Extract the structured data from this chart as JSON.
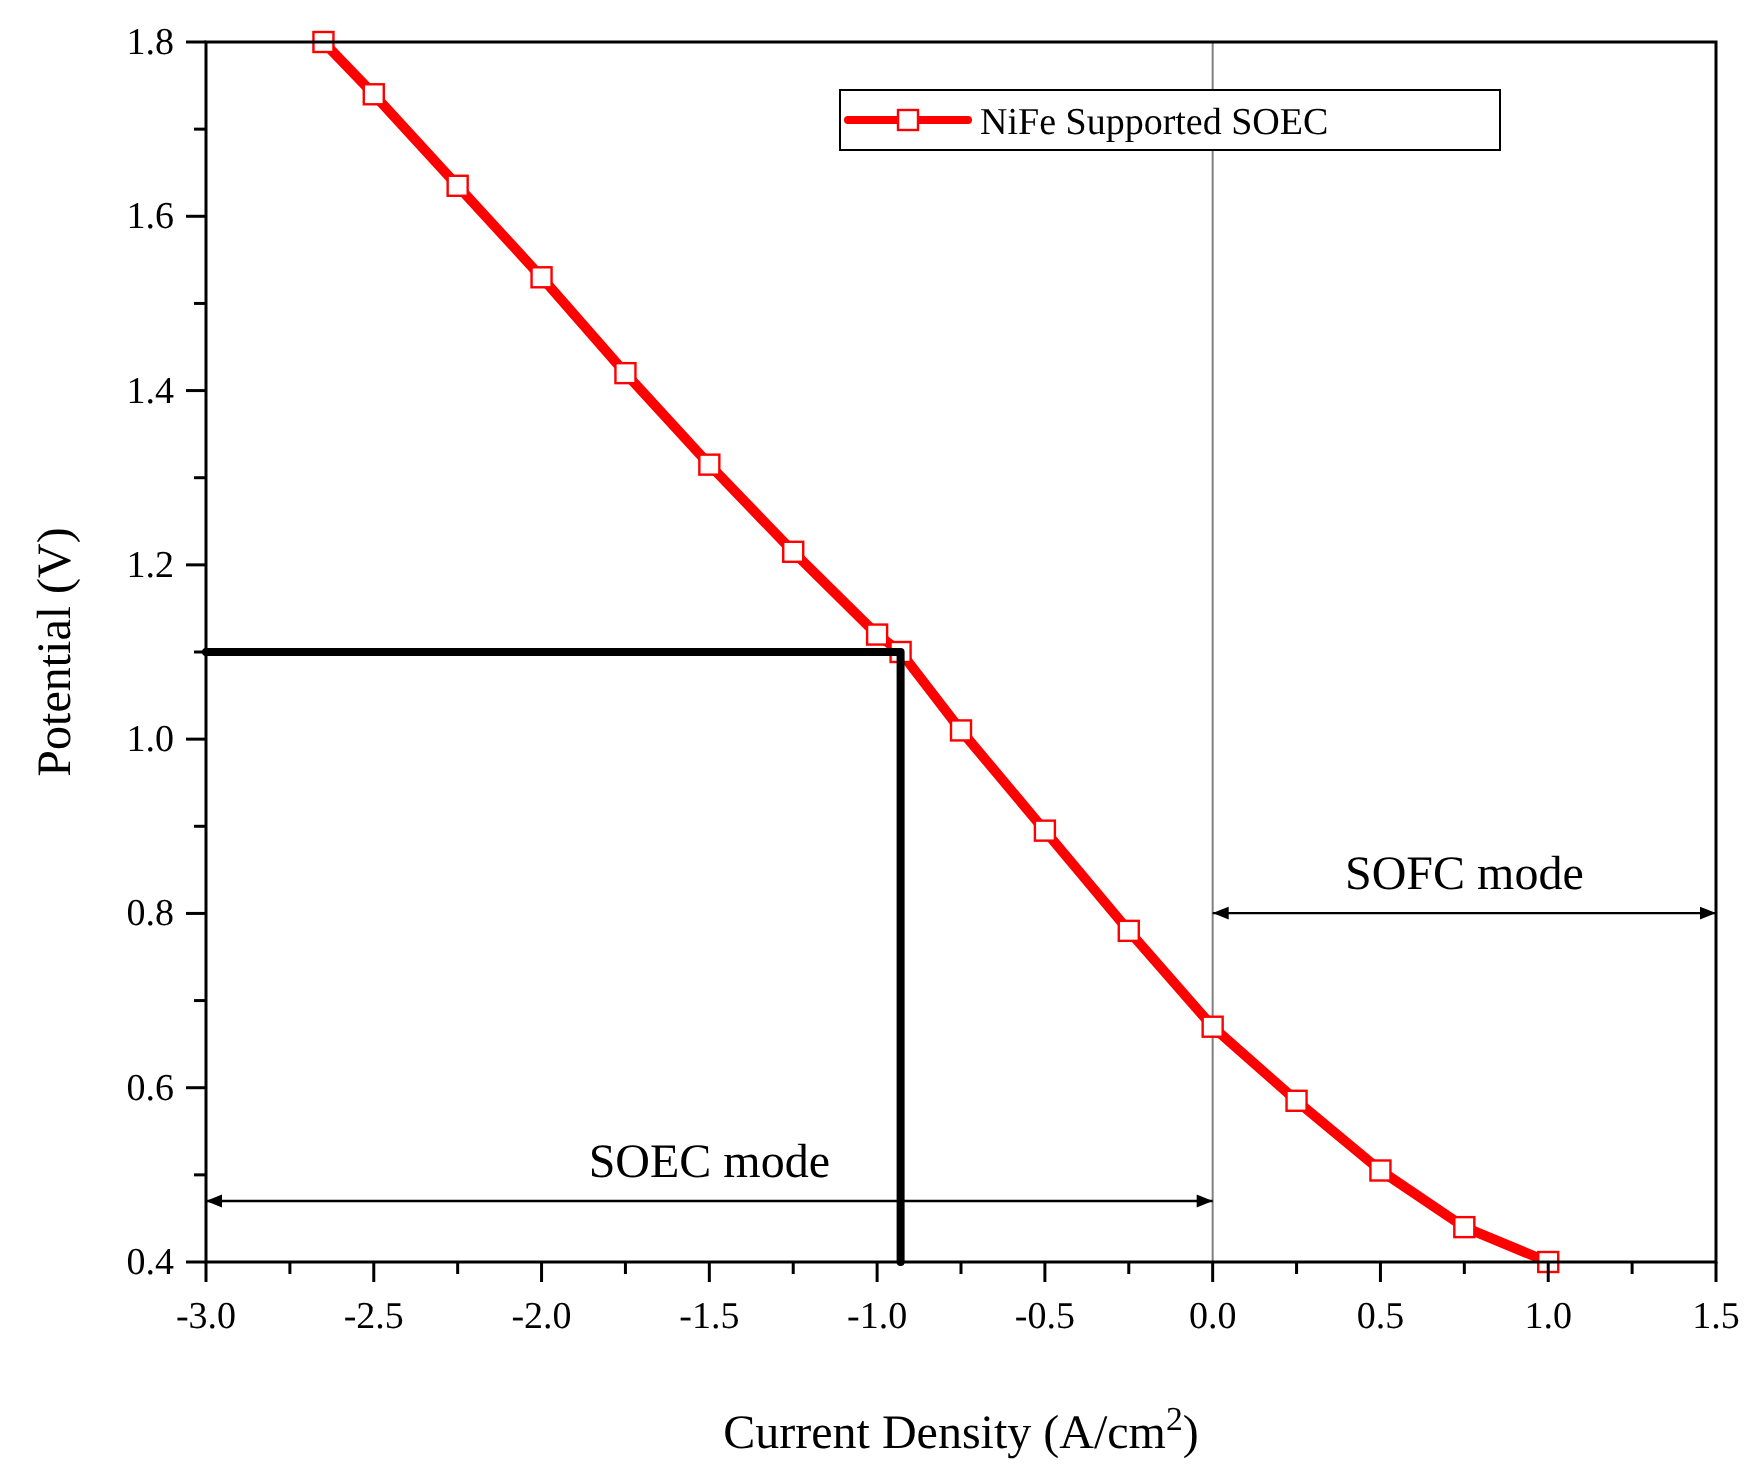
{
  "chart_data": {
    "type": "line",
    "xlabel": "Current Density (A/cm$^{2}$)",
    "ylabel": "Potential (V)",
    "xlim": [
      -3,
      1.5
    ],
    "ylim": [
      0.4,
      1.8
    ],
    "xticks": [
      {
        "value": -3,
        "label": "-3.0"
      },
      {
        "value": -2.75,
        "label": null
      },
      {
        "value": -2.5,
        "label": "-2.5"
      },
      {
        "value": -2.25,
        "label": null
      },
      {
        "value": -2,
        "label": "-2.0"
      },
      {
        "value": -1.75,
        "label": null
      },
      {
        "value": -1.5,
        "label": "-1.5"
      },
      {
        "value": -1.25,
        "label": null
      },
      {
        "value": -1,
        "label": "-1.0"
      },
      {
        "value": -0.75,
        "label": null
      },
      {
        "value": -0.5,
        "label": "-0.5"
      },
      {
        "value": -0.25,
        "label": null
      },
      {
        "value": 0,
        "label": "0.0"
      },
      {
        "value": 0.25,
        "label": null
      },
      {
        "value": 0.5,
        "label": "0.5"
      },
      {
        "value": 0.75,
        "label": null
      },
      {
        "value": 1,
        "label": "1.0"
      },
      {
        "value": 1.25,
        "label": null
      },
      {
        "value": 1.5,
        "label": "1.5"
      }
    ],
    "yticks": [
      {
        "value": 0.4,
        "label": "0.4"
      },
      {
        "value": 0.5,
        "label": null
      },
      {
        "value": 0.6,
        "label": "0.6"
      },
      {
        "value": 0.7,
        "label": null
      },
      {
        "value": 0.8,
        "label": "0.8"
      },
      {
        "value": 0.9,
        "label": null
      },
      {
        "value": 1.0,
        "label": "1.0"
      },
      {
        "value": 1.1,
        "label": null
      },
      {
        "value": 1.2,
        "label": "1.2"
      },
      {
        "value": 1.3,
        "label": null
      },
      {
        "value": 1.4,
        "label": "1.4"
      },
      {
        "value": 1.5,
        "label": null
      },
      {
        "value": 1.6,
        "label": "1.6"
      },
      {
        "value": 1.7,
        "label": null
      },
      {
        "value": 1.8,
        "label": "1.8"
      }
    ],
    "series": [
      {
        "name": "NiFe Supported SOEC",
        "color": "#ff0000",
        "marker": "square",
        "x": [
          -2.65,
          -2.5,
          -2.25,
          -2,
          -1.75,
          -1.5,
          -1.25,
          -1,
          -0.93,
          -0.75,
          -0.5,
          -0.25,
          0,
          0.25,
          0.5,
          0.75,
          1.0
        ],
        "values": [
          1.8,
          1.74,
          1.635,
          1.53,
          1.42,
          1.315,
          1.215,
          1.12,
          1.1,
          1.01,
          0.895,
          0.78,
          0.67,
          0.585,
          0.505,
          0.44,
          0.4
        ]
      },
      {
        "color": "#000000",
        "marker": "none",
        "x": [
          -3,
          -0.93,
          -0.93
        ],
        "values": [
          1.1,
          1.1,
          0.4
        ]
      }
    ],
    "ref_lines": [
      {
        "axis": "x",
        "value": 0,
        "color": "#808080"
      }
    ],
    "annotations": [
      "SOEC mode",
      "SOFC mode"
    ],
    "legend": "top right",
    "grid": false
  }
}
